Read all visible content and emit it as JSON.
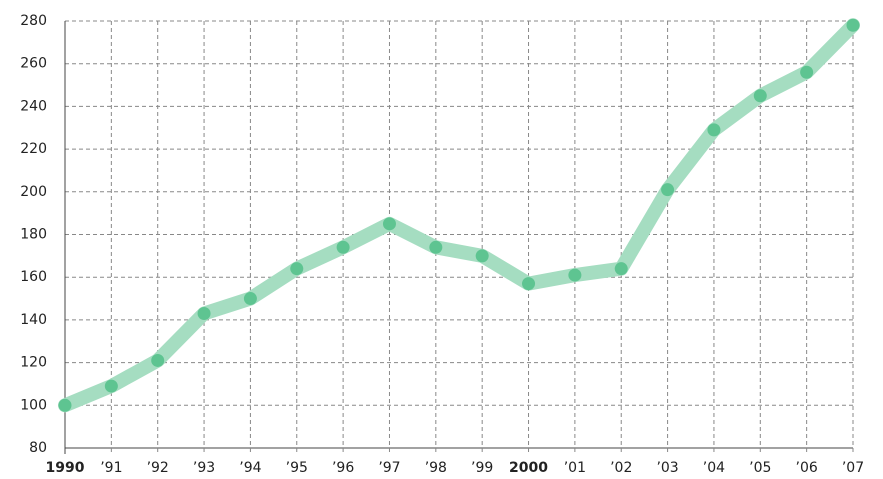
{
  "chart_data": {
    "type": "line",
    "categories": [
      "1990",
      "’91",
      "’92",
      "’93",
      "’94",
      "’95",
      "’96",
      "’97",
      "’98",
      "’99",
      "2000",
      "’01",
      "’02",
      "’03",
      "’04",
      "’05",
      "’06",
      "’07"
    ],
    "series": [
      {
        "color": "#a5ddc1",
        "marker_color": "#5ec491",
        "values": [
          100,
          109,
          121,
          143,
          150,
          164,
          174,
          185,
          174,
          170,
          157,
          161,
          164,
          201,
          229,
          245,
          256,
          278
        ]
      }
    ],
    "ylim": [
      80,
      280
    ],
    "yticks": [
      80,
      100,
      120,
      140,
      160,
      180,
      200,
      220,
      240,
      260,
      280
    ],
    "grid": true
  }
}
